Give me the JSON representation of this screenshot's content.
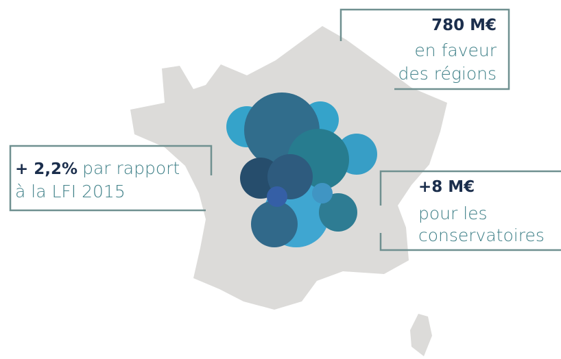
{
  "callouts": [
    {
      "highlight": "780 M€",
      "lines": [
        "en faveur",
        "des régions"
      ]
    },
    {
      "highlight": "+ 2,2%",
      "lines": [
        "par rapport",
        "à la LFI 2015"
      ]
    },
    {
      "highlight": "+8 M€",
      "lines": [
        "pour les",
        "conservatoires"
      ]
    }
  ]
}
